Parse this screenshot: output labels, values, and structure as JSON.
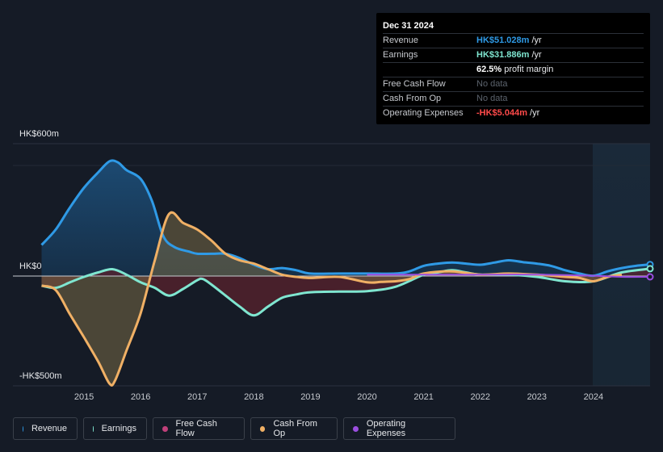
{
  "tooltip": {
    "date": "Dec 31 2024",
    "rows": [
      {
        "label": "Revenue",
        "value": "HK$51.028m",
        "suffix": " /yr",
        "color": "#2f9ae6"
      },
      {
        "label": "Earnings",
        "value": "HK$31.886m",
        "suffix": " /yr",
        "color": "#7fe6d0"
      },
      {
        "label": "",
        "value": "62.5%",
        "suffix": " profit margin",
        "color": "#ffffff"
      },
      {
        "label": "Free Cash Flow",
        "value": "No data",
        "suffix": "",
        "color": "#5c636d"
      },
      {
        "label": "Cash From Op",
        "value": "No data",
        "suffix": "",
        "color": "#5c636d"
      },
      {
        "label": "Operating Expenses",
        "value": "-HK$5.044m",
        "suffix": " /yr",
        "color": "#ff4a4a"
      }
    ]
  },
  "legend": [
    {
      "label": "Revenue",
      "color": "#2f9ae6"
    },
    {
      "label": "Earnings",
      "color": "#7fe6d0"
    },
    {
      "label": "Free Cash Flow",
      "color": "#c0407a"
    },
    {
      "label": "Cash From Op",
      "color": "#f0b065"
    },
    {
      "label": "Operating Expenses",
      "color": "#9b4ee0"
    }
  ],
  "chart_data": {
    "type": "area",
    "currency": "HK$",
    "ytick_labels": [
      "HK$600m",
      "HK$0",
      "-HK$500m"
    ],
    "ylim": [
      -500,
      600
    ],
    "xlim": [
      2014.2,
      2025.0
    ],
    "x_ticks": [
      2015,
      2016,
      2017,
      2018,
      2019,
      2020,
      2021,
      2022,
      2023,
      2024
    ],
    "forecast_start": 2024.0,
    "grid": true,
    "legend_position": "bottom",
    "series": [
      {
        "name": "Revenue",
        "color": "#2f9ae6",
        "fill": true,
        "points": [
          [
            2014.25,
            140
          ],
          [
            2014.5,
            210
          ],
          [
            2014.75,
            310
          ],
          [
            2015.0,
            400
          ],
          [
            2015.25,
            470
          ],
          [
            2015.45,
            520
          ],
          [
            2015.6,
            515
          ],
          [
            2015.75,
            480
          ],
          [
            2016.0,
            440
          ],
          [
            2016.2,
            340
          ],
          [
            2016.4,
            180
          ],
          [
            2016.6,
            130
          ],
          [
            2016.85,
            110
          ],
          [
            2017.0,
            100
          ],
          [
            2017.25,
            100
          ],
          [
            2017.5,
            100
          ],
          [
            2017.75,
            80
          ],
          [
            2018.0,
            50
          ],
          [
            2018.25,
            30
          ],
          [
            2018.5,
            35
          ],
          [
            2018.75,
            25
          ],
          [
            2019.0,
            10
          ],
          [
            2019.5,
            10
          ],
          [
            2020.0,
            10
          ],
          [
            2020.5,
            10
          ],
          [
            2020.75,
            20
          ],
          [
            2021.0,
            45
          ],
          [
            2021.25,
            55
          ],
          [
            2021.5,
            60
          ],
          [
            2021.75,
            55
          ],
          [
            2022.0,
            50
          ],
          [
            2022.25,
            60
          ],
          [
            2022.5,
            70
          ],
          [
            2022.75,
            62
          ],
          [
            2023.0,
            55
          ],
          [
            2023.25,
            45
          ],
          [
            2023.5,
            25
          ],
          [
            2023.75,
            10
          ],
          [
            2024.0,
            0
          ],
          [
            2024.25,
            20
          ],
          [
            2024.5,
            35
          ],
          [
            2024.75,
            45
          ],
          [
            2025.0,
            51
          ]
        ]
      },
      {
        "name": "Earnings",
        "color": "#7fe6d0",
        "fill": true,
        "points": [
          [
            2014.25,
            -45
          ],
          [
            2014.5,
            -55
          ],
          [
            2014.75,
            -30
          ],
          [
            2015.0,
            -5
          ],
          [
            2015.25,
            15
          ],
          [
            2015.5,
            30
          ],
          [
            2015.75,
            5
          ],
          [
            2016.0,
            -30
          ],
          [
            2016.25,
            -55
          ],
          [
            2016.5,
            -90
          ],
          [
            2016.75,
            -60
          ],
          [
            2017.0,
            -20
          ],
          [
            2017.1,
            -15
          ],
          [
            2017.25,
            -40
          ],
          [
            2017.5,
            -90
          ],
          [
            2017.75,
            -140
          ],
          [
            2018.0,
            -180
          ],
          [
            2018.25,
            -140
          ],
          [
            2018.5,
            -100
          ],
          [
            2018.75,
            -85
          ],
          [
            2019.0,
            -75
          ],
          [
            2019.5,
            -72
          ],
          [
            2020.0,
            -70
          ],
          [
            2020.5,
            -50
          ],
          [
            2021.0,
            5
          ],
          [
            2021.25,
            15
          ],
          [
            2021.5,
            25
          ],
          [
            2021.75,
            15
          ],
          [
            2022.0,
            5
          ],
          [
            2022.5,
            5
          ],
          [
            2023.0,
            -5
          ],
          [
            2023.5,
            -25
          ],
          [
            2024.0,
            -25
          ],
          [
            2024.5,
            15
          ],
          [
            2025.0,
            32
          ]
        ]
      },
      {
        "name": "Cash From Op",
        "color": "#f0b065",
        "fill": true,
        "points": [
          [
            2014.25,
            -45
          ],
          [
            2014.5,
            -65
          ],
          [
            2014.75,
            -175
          ],
          [
            2015.0,
            -280
          ],
          [
            2015.25,
            -390
          ],
          [
            2015.45,
            -490
          ],
          [
            2015.55,
            -475
          ],
          [
            2015.75,
            -340
          ],
          [
            2016.0,
            -170
          ],
          [
            2016.25,
            70
          ],
          [
            2016.5,
            280
          ],
          [
            2016.75,
            240
          ],
          [
            2017.0,
            210
          ],
          [
            2017.25,
            160
          ],
          [
            2017.5,
            100
          ],
          [
            2017.75,
            70
          ],
          [
            2018.0,
            55
          ],
          [
            2018.25,
            30
          ],
          [
            2018.5,
            5
          ],
          [
            2018.75,
            -5
          ],
          [
            2019.0,
            -10
          ],
          [
            2019.5,
            -5
          ],
          [
            2020.0,
            -30
          ],
          [
            2020.25,
            -28
          ],
          [
            2020.5,
            -25
          ],
          [
            2020.75,
            -15
          ],
          [
            2021.0,
            10
          ],
          [
            2021.5,
            20
          ],
          [
            2022.0,
            5
          ],
          [
            2022.5,
            10
          ],
          [
            2023.0,
            5
          ],
          [
            2023.5,
            -5
          ],
          [
            2023.75,
            -10
          ],
          [
            2024.0,
            -25
          ],
          [
            2024.25,
            -5
          ],
          [
            2024.5,
            5
          ]
        ]
      },
      {
        "name": "Operating Expenses",
        "color": "#9b4ee0",
        "fill": false,
        "points": [
          [
            2020.0,
            5
          ],
          [
            2021.0,
            5
          ],
          [
            2022.0,
            5
          ],
          [
            2023.0,
            5
          ],
          [
            2024.0,
            0
          ],
          [
            2024.5,
            -5
          ],
          [
            2025.0,
            -5
          ]
        ]
      }
    ]
  }
}
